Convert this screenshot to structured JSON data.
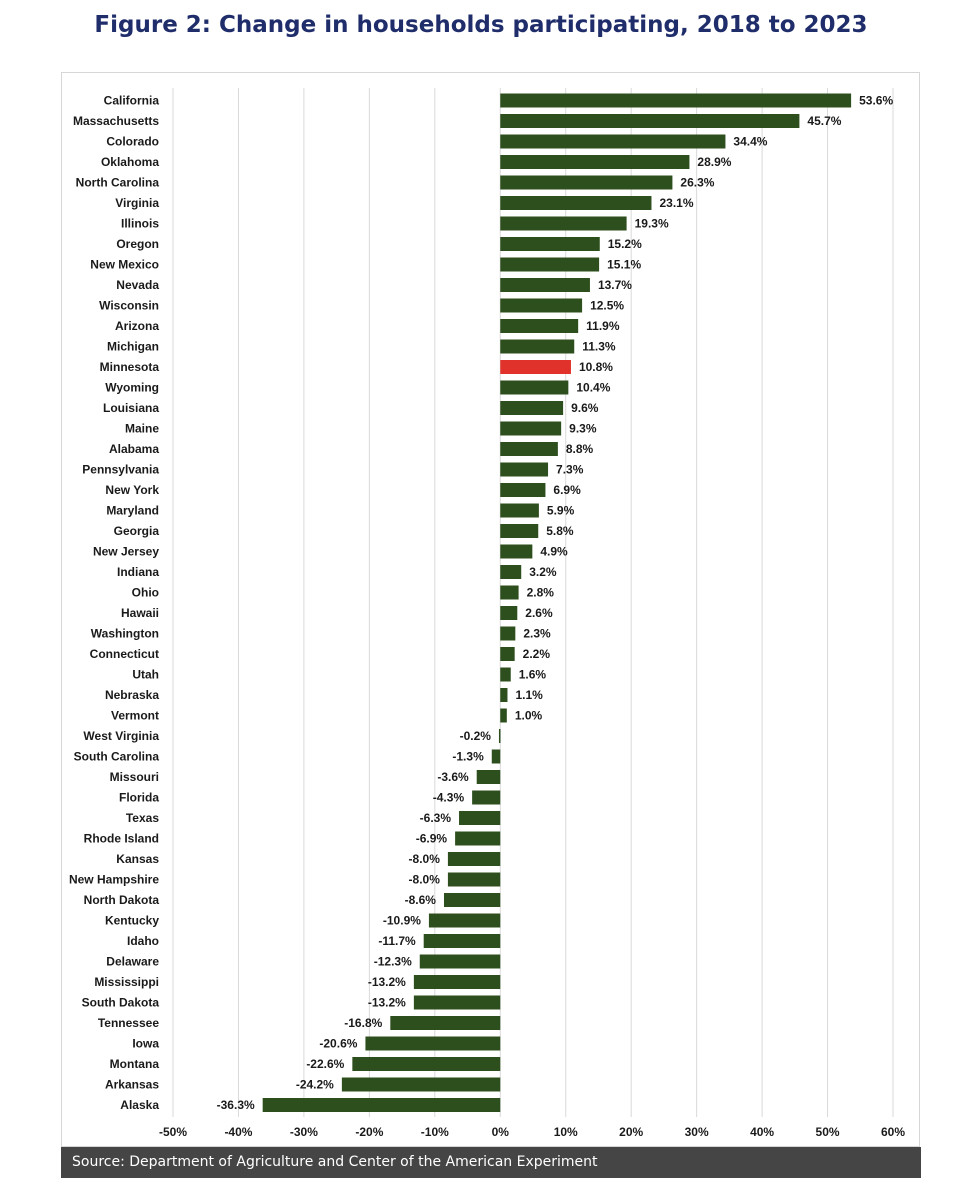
{
  "title": "Figure 2: Change in households participating, 2018 to 2023",
  "source": "Source: Department of Agriculture and Center of the American Experiment",
  "chart_data": {
    "type": "bar",
    "orientation": "horizontal",
    "title": "Figure 2: Change in households participating, 2018 to 2023",
    "xlabel": "",
    "ylabel": "",
    "xlim": [
      -50,
      60
    ],
    "x_tick_values": [
      -50,
      -40,
      -30,
      -20,
      -10,
      0,
      10,
      20,
      30,
      40,
      50,
      60
    ],
    "x_tick_labels": [
      "-50%",
      "-40%",
      "-30%",
      "-20%",
      "-10%",
      "0%",
      "10%",
      "20%",
      "30%",
      "40%",
      "50%",
      "60%"
    ],
    "grid": "vertical",
    "legend": "none",
    "bar_color": "#2d4f1e",
    "highlight_color": "#e0322b",
    "highlight_category": "Minnesota",
    "categories": [
      "California",
      "Massachusetts",
      "Colorado",
      "Oklahoma",
      "North Carolina",
      "Virginia",
      "Illinois",
      "Oregon",
      "New Mexico",
      "Nevada",
      "Wisconsin",
      "Arizona",
      "Michigan",
      "Minnesota",
      "Wyoming",
      "Louisiana",
      "Maine",
      "Alabama",
      "Pennsylvania",
      "New York",
      "Maryland",
      "Georgia",
      "New Jersey",
      "Indiana",
      "Ohio",
      "Hawaii",
      "Washington",
      "Connecticut",
      "Utah",
      "Nebraska",
      "Vermont",
      "West Virginia",
      "South Carolina",
      "Missouri",
      "Florida",
      "Texas",
      "Rhode Island",
      "Kansas",
      "New Hampshire",
      "North Dakota",
      "Kentucky",
      "Idaho",
      "Delaware",
      "Mississippi",
      "South Dakota",
      "Tennessee",
      "Iowa",
      "Montana",
      "Arkansas",
      "Alaska"
    ],
    "values": [
      53.6,
      45.7,
      34.4,
      28.9,
      26.3,
      23.1,
      19.3,
      15.2,
      15.1,
      13.7,
      12.5,
      11.9,
      11.3,
      10.8,
      10.4,
      9.6,
      9.3,
      8.8,
      7.3,
      6.9,
      5.9,
      5.8,
      4.9,
      3.2,
      2.8,
      2.6,
      2.3,
      2.2,
      1.6,
      1.1,
      1.0,
      -0.2,
      -1.3,
      -3.6,
      -4.3,
      -6.3,
      -6.9,
      -8.0,
      -8.0,
      -8.6,
      -10.9,
      -11.7,
      -12.3,
      -13.2,
      -13.2,
      -16.8,
      -20.6,
      -22.6,
      -24.2,
      -36.3
    ],
    "value_labels": [
      "53.6%",
      "45.7%",
      "34.4%",
      "28.9%",
      "26.3%",
      "23.1%",
      "19.3%",
      "15.2%",
      "15.1%",
      "13.7%",
      "12.5%",
      "11.9%",
      "11.3%",
      "10.8%",
      "10.4%",
      "9.6%",
      "9.3%",
      "8.8%",
      "7.3%",
      "6.9%",
      "5.9%",
      "5.8%",
      "4.9%",
      "3.2%",
      "2.8%",
      "2.6%",
      "2.3%",
      "2.2%",
      "1.6%",
      "1.1%",
      "1.0%",
      "-0.2%",
      "-1.3%",
      "-3.6%",
      "-4.3%",
      "-6.3%",
      "-6.9%",
      "-8.0%",
      "-8.0%",
      "-8.6%",
      "-10.9%",
      "-11.7%",
      "-12.3%",
      "-13.2%",
      "-13.2%",
      "-16.8%",
      "-20.6%",
      "-22.6%",
      "-24.2%",
      "-36.3%"
    ]
  }
}
